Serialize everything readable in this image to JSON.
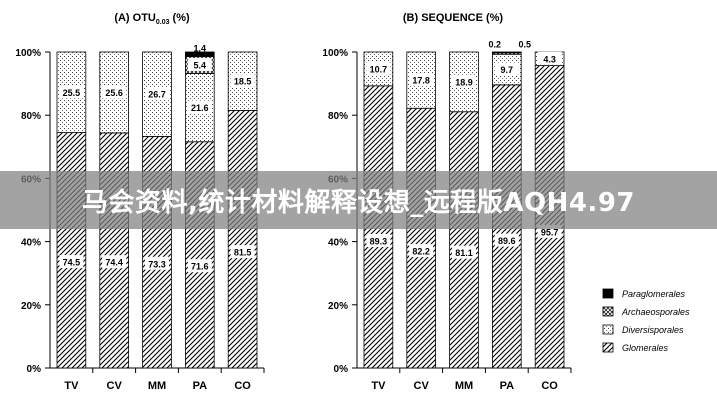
{
  "colors": {
    "Paraglomerales": "#000000",
    "Archaeosporales": "#ffffff",
    "Diversisporales": "#ffffff",
    "Glomerales": "#ffffff",
    "banner": "#808080"
  },
  "legend": {
    "items": [
      "Paraglomerales",
      "Archaeosporales",
      "Diversisporales",
      "Glomerales"
    ]
  },
  "banner": {
    "text": "马会资料,统计材料解释设想_远程版AQH4.97"
  },
  "chart_data": [
    {
      "type": "bar",
      "stacked": true,
      "title": "(A) OTU0.03 (%)",
      "title_main": "(A) OTU",
      "title_sub": "0.03",
      "title_end": " (%)",
      "xlabel": "",
      "ylabel": "",
      "ylim": [
        0,
        100
      ],
      "yticks": [
        "0%",
        "20%",
        "40%",
        "60%",
        "80%",
        "100%"
      ],
      "categories": [
        "TV",
        "CV",
        "MM",
        "PA",
        "CO"
      ],
      "series": [
        {
          "name": "Glomerales",
          "values": [
            74.5,
            74.4,
            73.3,
            71.6,
            81.5
          ]
        },
        {
          "name": "Diversisporales",
          "values": [
            25.5,
            25.6,
            26.7,
            21.6,
            18.5
          ]
        },
        {
          "name": "Archaeosporales",
          "values": [
            0,
            0,
            0,
            5.4,
            0
          ]
        },
        {
          "name": "Paraglomerales",
          "values": [
            0,
            0,
            0,
            1.4,
            0
          ]
        }
      ],
      "data_labels": [
        {
          "category": "TV",
          "series": "Glomerales",
          "text": "74.5"
        },
        {
          "category": "CV",
          "series": "Glomerales",
          "text": "74.4"
        },
        {
          "category": "MM",
          "series": "Glomerales",
          "text": "73.3"
        },
        {
          "category": "PA",
          "series": "Glomerales",
          "text": "71.6"
        },
        {
          "category": "CO",
          "series": "Glomerales",
          "text": "81.5"
        },
        {
          "category": "TV",
          "series": "Diversisporales",
          "text": "25.5"
        },
        {
          "category": "CV",
          "series": "Diversisporales",
          "text": "25.6"
        },
        {
          "category": "MM",
          "series": "Diversisporales",
          "text": "26.7"
        },
        {
          "category": "PA",
          "series": "Diversisporales",
          "text": "21.6"
        },
        {
          "category": "CO",
          "series": "Diversisporales",
          "text": "18.5"
        },
        {
          "category": "PA",
          "series": "Archaeosporales",
          "text": "5.4"
        },
        {
          "category": "PA",
          "series": "Paraglomerales",
          "text": "1.4"
        }
      ]
    },
    {
      "type": "bar",
      "stacked": true,
      "title": "(B) SEQUENCE (%)",
      "xlabel": "",
      "ylabel": "",
      "ylim": [
        0,
        100
      ],
      "yticks": [
        "0%",
        "20%",
        "40%",
        "60%",
        "80%",
        "100%"
      ],
      "categories": [
        "TV",
        "CV",
        "MM",
        "PA",
        "CO"
      ],
      "series": [
        {
          "name": "Glomerales",
          "values": [
            89.3,
            82.2,
            81.1,
            89.6,
            95.7
          ]
        },
        {
          "name": "Diversisporales",
          "values": [
            10.7,
            17.8,
            18.9,
            9.7,
            4.3
          ]
        },
        {
          "name": "Archaeosporales",
          "values": [
            0,
            0,
            0,
            0.5,
            0
          ]
        },
        {
          "name": "Paraglomerales",
          "values": [
            0,
            0,
            0,
            0.2,
            0
          ]
        }
      ],
      "data_labels": [
        {
          "category": "TV",
          "series": "Glomerales",
          "text": "89.3"
        },
        {
          "category": "CV",
          "series": "Glomerales",
          "text": "82.2"
        },
        {
          "category": "MM",
          "series": "Glomerales",
          "text": "81.1"
        },
        {
          "category": "PA",
          "series": "Glomerales",
          "text": "89.6"
        },
        {
          "category": "CO",
          "series": "Glomerales",
          "text": "95.7"
        },
        {
          "category": "TV",
          "series": "Diversisporales",
          "text": "10.7"
        },
        {
          "category": "CV",
          "series": "Diversisporales",
          "text": "17.8"
        },
        {
          "category": "MM",
          "series": "Diversisporales",
          "text": "18.9"
        },
        {
          "category": "PA",
          "series": "Diversisporales",
          "text": "9.7"
        },
        {
          "category": "CO",
          "series": "Diversisporales",
          "text": "4.3"
        },
        {
          "category": "PA",
          "series": "Paraglomerales",
          "text": "0.2"
        },
        {
          "category": "PA",
          "series": "Archaeosporales",
          "text": "0.5"
        }
      ]
    }
  ]
}
